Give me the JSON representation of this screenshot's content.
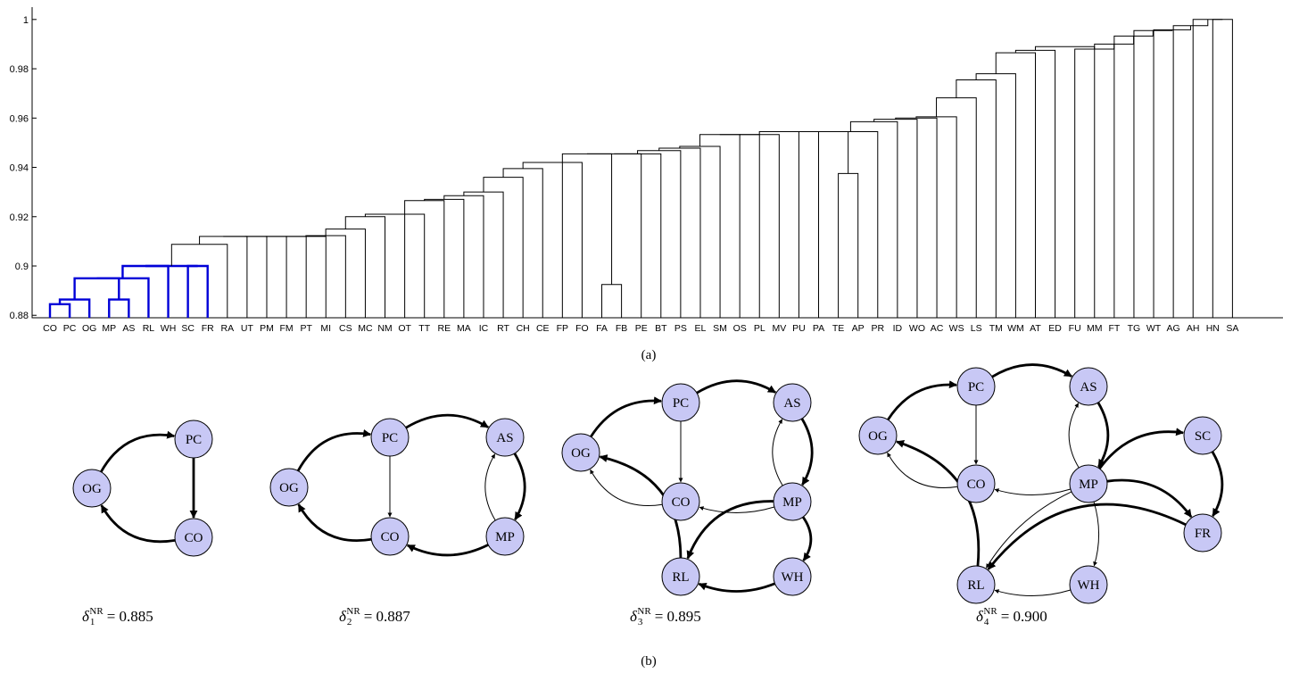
{
  "panel_a": {
    "caption": "(a)",
    "y_axis": {
      "ticks": [
        0.88,
        0.9,
        0.92,
        0.94,
        0.96,
        0.98,
        1
      ],
      "tick_labels": [
        "0.88",
        "0.9",
        "0.92",
        "0.94",
        "0.96",
        "0.98",
        "1"
      ],
      "range": [
        0.879,
        1.005
      ]
    },
    "highlight_color": "#0000d8",
    "leaves": [
      "CO",
      "PC",
      "OG",
      "MP",
      "AS",
      "RL",
      "WH",
      "SC",
      "FR",
      "RA",
      "UT",
      "PM",
      "FM",
      "PT",
      "MI",
      "CS",
      "MC",
      "NM",
      "OT",
      "TT",
      "RE",
      "MA",
      "IC",
      "RT",
      "CH",
      "CE",
      "FP",
      "FO",
      "FA",
      "FB",
      "PE",
      "BT",
      "PS",
      "EL",
      "SM",
      "OS",
      "PL",
      "MV",
      "PU",
      "PA",
      "TE",
      "AP",
      "PR",
      "ID",
      "WO",
      "AC",
      "WS",
      "LS",
      "TM",
      "WM",
      "AT",
      "ED",
      "FU",
      "MM",
      "FT",
      "TG",
      "WT",
      "AG",
      "AH",
      "HN",
      "SA"
    ]
  },
  "panel_b": {
    "caption": "(b)",
    "node_color": "#c8c8f5",
    "graphs": [
      {
        "delta_symbol": "δ",
        "delta_sub": "1",
        "delta_sup": "NR",
        "delta_value": "= 0.885",
        "nodes": [
          "PC",
          "OG",
          "CO"
        ]
      },
      {
        "delta_symbol": "δ",
        "delta_sub": "2",
        "delta_sup": "NR",
        "delta_value": "= 0.887",
        "nodes": [
          "PC",
          "AS",
          "OG",
          "CO",
          "MP"
        ]
      },
      {
        "delta_symbol": "δ",
        "delta_sub": "3",
        "delta_sup": "NR",
        "delta_value": "= 0.895",
        "nodes": [
          "PC",
          "AS",
          "OG",
          "CO",
          "MP",
          "RL",
          "WH"
        ]
      },
      {
        "delta_symbol": "δ",
        "delta_sub": "4",
        "delta_sup": "NR",
        "delta_value": "= 0.900",
        "nodes": [
          "PC",
          "AS",
          "OG",
          "SC",
          "CO",
          "MP",
          "FR",
          "RL",
          "WH"
        ]
      }
    ]
  }
}
